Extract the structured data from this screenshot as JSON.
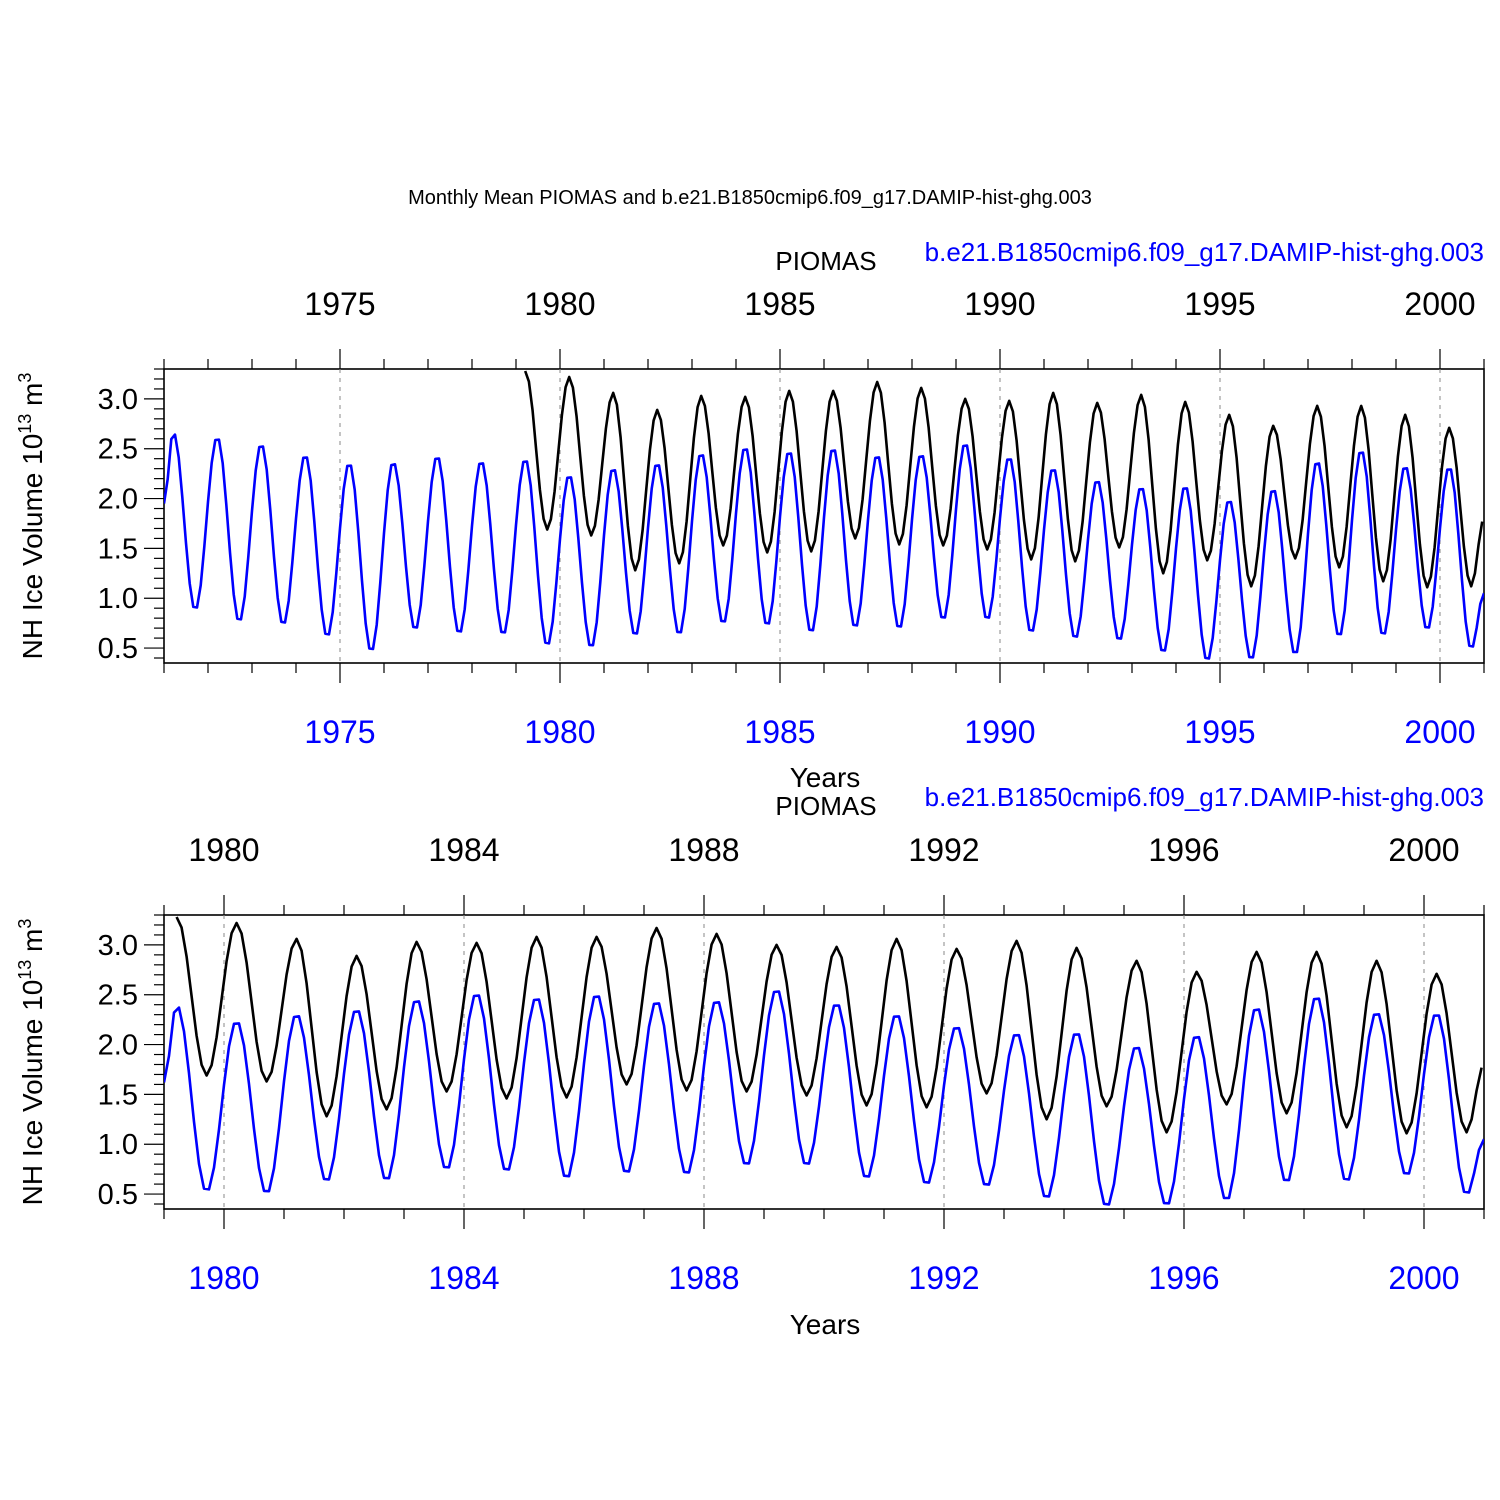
{
  "main_title": "Monthly Mean PIOMAS and b.e21.B1850cmip6.f09_g17.DAMIP-hist-ghg.003",
  "colors": {
    "piomas": "#000000",
    "model": "#0000ff",
    "grid": "#888888",
    "axis": "#000000"
  },
  "chart_data": [
    {
      "type": "line",
      "ylabel": "NH Ice Volume 10¹³ m³",
      "ylabel_main": "NH Ice Volume 10",
      "ylabel_exp1": "13",
      "ylabel_unit": " m",
      "ylabel_exp2": "3",
      "xlabel": "Years",
      "legend_top_black": "PIOMAS",
      "legend_top_blue": "b.e21.B1850cmip6.f09_g17.DAMIP-hist-ghg.003",
      "xlim": [
        1971.0,
        2001.0
      ],
      "ylim": [
        0.35,
        3.3
      ],
      "yticks": [
        0.5,
        1.0,
        1.5,
        2.0,
        2.5,
        3.0
      ],
      "ytick_labels": [
        "0.5",
        "1.0",
        "1.5",
        "2.0",
        "2.5",
        "3.0"
      ],
      "xticks": [
        1975,
        1980,
        1985,
        1990,
        1995,
        2000
      ],
      "xtick_labels_top": [
        "1975",
        "1980",
        "1985",
        "1990",
        "1995",
        "2000"
      ],
      "xtick_labels_bottom": [
        "1975",
        "1980",
        "1985",
        "1990",
        "1995",
        "2000"
      ],
      "grid": "dashed vertical at major x ticks",
      "series": [
        {
          "name": "PIOMAS",
          "color": "#000000",
          "start_year": 1979,
          "annual_max": [
            3.28,
            3.22,
            3.06,
            2.89,
            3.03,
            3.02,
            3.08,
            3.08,
            3.17,
            3.11,
            3.0,
            2.98,
            3.06,
            2.96,
            3.04,
            2.97,
            2.84,
            2.73,
            2.93,
            2.93,
            2.84,
            2.71
          ],
          "annual_min": [
            1.69,
            1.63,
            1.28,
            1.35,
            1.53,
            1.46,
            1.47,
            1.6,
            1.54,
            1.53,
            1.49,
            1.39,
            1.37,
            1.51,
            1.25,
            1.38,
            1.12,
            1.4,
            1.31,
            1.17,
            1.11,
            1.12
          ],
          "end_value": 1.8
        },
        {
          "name": "b.e21.B1850cmip6.f09_g17.DAMIP-hist-ghg.003",
          "color": "#0000ff",
          "start_year": 1971,
          "start_value": 1.95,
          "annual_max": [
            2.67,
            2.62,
            2.55,
            2.44,
            2.36,
            2.37,
            2.43,
            2.38,
            2.4,
            2.24,
            2.31,
            2.36,
            2.46,
            2.52,
            2.48,
            2.51,
            2.44,
            2.45,
            2.56,
            2.42,
            2.31,
            2.19,
            2.12,
            2.13,
            1.99,
            2.1,
            2.38,
            2.49,
            2.33,
            2.32
          ],
          "annual_min": [
            0.88,
            0.76,
            0.73,
            0.61,
            0.46,
            0.68,
            0.64,
            0.63,
            0.52,
            0.5,
            0.62,
            0.63,
            0.74,
            0.72,
            0.65,
            0.7,
            0.69,
            0.78,
            0.78,
            0.65,
            0.59,
            0.57,
            0.45,
            0.37,
            0.38,
            0.43,
            0.61,
            0.62,
            0.68,
            0.49
          ],
          "end_value": 1.05
        }
      ]
    },
    {
      "type": "line",
      "ylabel": "NH Ice Volume 10¹³ m³",
      "ylabel_main": "NH Ice Volume 10",
      "ylabel_exp1": "13",
      "ylabel_unit": " m",
      "ylabel_exp2": "3",
      "xlabel": "Years",
      "legend_top_black": "PIOMAS",
      "legend_top_blue": "b.e21.B1850cmip6.f09_g17.DAMIP-hist-ghg.003",
      "xlim": [
        1979.0,
        2001.0
      ],
      "ylim": [
        0.35,
        3.3
      ],
      "yticks": [
        0.5,
        1.0,
        1.5,
        2.0,
        2.5,
        3.0
      ],
      "ytick_labels": [
        "0.5",
        "1.0",
        "1.5",
        "2.0",
        "2.5",
        "3.0"
      ],
      "xticks": [
        1980,
        1984,
        1988,
        1992,
        1996,
        2000
      ],
      "xtick_labels_top": [
        "1980",
        "1984",
        "1988",
        "1992",
        "1996",
        "2000"
      ],
      "xtick_labels_bottom": [
        "1980",
        "1984",
        "1988",
        "1992",
        "1996",
        "2000"
      ],
      "grid": "dashed vertical at major x ticks",
      "series": [
        {
          "name": "PIOMAS",
          "color": "#000000",
          "start_year": 1979,
          "annual_max": [
            3.28,
            3.22,
            3.06,
            2.89,
            3.03,
            3.02,
            3.08,
            3.08,
            3.17,
            3.11,
            3.0,
            2.98,
            3.06,
            2.96,
            3.04,
            2.97,
            2.84,
            2.73,
            2.93,
            2.93,
            2.84,
            2.71
          ],
          "annual_min": [
            1.69,
            1.63,
            1.28,
            1.35,
            1.53,
            1.46,
            1.47,
            1.6,
            1.54,
            1.53,
            1.49,
            1.39,
            1.37,
            1.51,
            1.25,
            1.38,
            1.12,
            1.4,
            1.31,
            1.17,
            1.11,
            1.12
          ],
          "end_value": 1.8
        },
        {
          "name": "b.e21.B1850cmip6.f09_g17.DAMIP-hist-ghg.003",
          "color": "#0000ff",
          "start_year": 1979,
          "start_value": 1.62,
          "annual_max": [
            2.4,
            2.24,
            2.31,
            2.36,
            2.46,
            2.52,
            2.48,
            2.51,
            2.44,
            2.45,
            2.56,
            2.42,
            2.31,
            2.19,
            2.12,
            2.13,
            1.99,
            2.1,
            2.38,
            2.49,
            2.33,
            2.32
          ],
          "annual_min": [
            0.52,
            0.5,
            0.62,
            0.63,
            0.74,
            0.72,
            0.65,
            0.7,
            0.69,
            0.78,
            0.78,
            0.65,
            0.59,
            0.57,
            0.45,
            0.37,
            0.38,
            0.43,
            0.61,
            0.62,
            0.68,
            0.49
          ],
          "end_value": 1.05
        }
      ]
    }
  ]
}
